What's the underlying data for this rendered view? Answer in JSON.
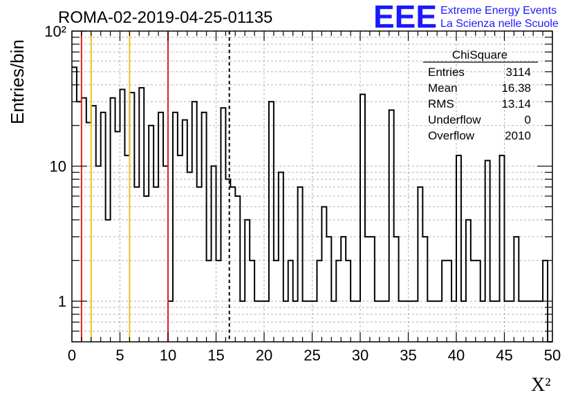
{
  "header": {
    "run_title": "ROMA-02-2019-04-25-01135",
    "logo_text": "EEE",
    "project_line1": "Extreme Energy Events",
    "project_line2": "La Scienza nelle Scuole"
  },
  "stats_box": {
    "name": "ChiSquare",
    "rows": [
      {
        "label": "Entries",
        "value": "3114"
      },
      {
        "label": "Mean",
        "value": "16.38"
      },
      {
        "label": "RMS",
        "value": "13.14"
      },
      {
        "label": "Underflow",
        "value": "0"
      },
      {
        "label": "Overflow",
        "value": "2010"
      }
    ]
  },
  "colors": {
    "red_line": "#e02020",
    "yellow_line": "#f0c020",
    "logo_blue": "#1a1aff",
    "grid": "#b0b0b0"
  },
  "chart_data": {
    "type": "histogram",
    "xlabel": "X²",
    "ylabel": "Entries/bin",
    "xlim": [
      0,
      50
    ],
    "ylim": [
      0.5,
      100
    ],
    "yscale": "log",
    "grid": true,
    "bin_width": 0.5,
    "x_ticks": [
      "0",
      "5",
      "10",
      "15",
      "20",
      "25",
      "30",
      "35",
      "40",
      "45",
      "50"
    ],
    "y_ticks": [
      {
        "value": 1,
        "label": "1"
      },
      {
        "value": 10,
        "label": "10"
      },
      {
        "value": 100,
        "label": "10²"
      }
    ],
    "counts": [
      54,
      30,
      32,
      21,
      28,
      10,
      25,
      4,
      32,
      18,
      37,
      12,
      35,
      7,
      38,
      6,
      20,
      7,
      25,
      10,
      1,
      25,
      12,
      22,
      9,
      30,
      7,
      25,
      2,
      10,
      2,
      27,
      8,
      7,
      6,
      1,
      4,
      2,
      1,
      1,
      1,
      30,
      2,
      9,
      1,
      2,
      1,
      7,
      1,
      1,
      1,
      2,
      5,
      3,
      1,
      2,
      3,
      2,
      1,
      1,
      34,
      3,
      3,
      1,
      1,
      1,
      26,
      3,
      1,
      1,
      1,
      1,
      7,
      3,
      1,
      1,
      1,
      2,
      2,
      1,
      12,
      1,
      4,
      2,
      2,
      1,
      11,
      1,
      1,
      12,
      1,
      1,
      3,
      1,
      1,
      1,
      1,
      1,
      2,
      0.5
    ],
    "vertical_lines": [
      {
        "x": 1,
        "color": "red",
        "style": "solid"
      },
      {
        "x": 2,
        "color": "yellow",
        "style": "solid"
      },
      {
        "x": 6,
        "color": "yellow",
        "style": "solid"
      },
      {
        "x": 10,
        "color": "red",
        "style": "solid"
      },
      {
        "x": 16.38,
        "color": "black",
        "style": "dashed"
      }
    ]
  }
}
